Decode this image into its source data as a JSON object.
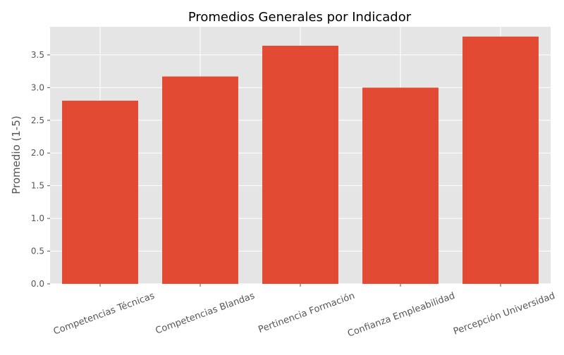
{
  "chart_data": {
    "type": "bar",
    "title": "Promedios Generales por Indicador",
    "xlabel": "",
    "ylabel": "Promedio (1-5)",
    "categories": [
      "Competencias Técnicas",
      "Competencias Blandas",
      "Pertinencia Formación",
      "Confianza Empleabilidad",
      "Percepción Universidad"
    ],
    "values": [
      2.8,
      3.17,
      3.64,
      3.0,
      3.78
    ],
    "ylim": [
      0,
      3.93
    ],
    "yticks": [
      "0.0",
      "0.5",
      "1.0",
      "1.5",
      "2.0",
      "2.5",
      "3.0",
      "3.5"
    ],
    "grid": true,
    "colors": {
      "bar": "#E24A33",
      "plot_background": "#E5E5E5",
      "grid": "#FFFFFF",
      "tick_text": "#555555",
      "title_text": "#000000"
    }
  }
}
